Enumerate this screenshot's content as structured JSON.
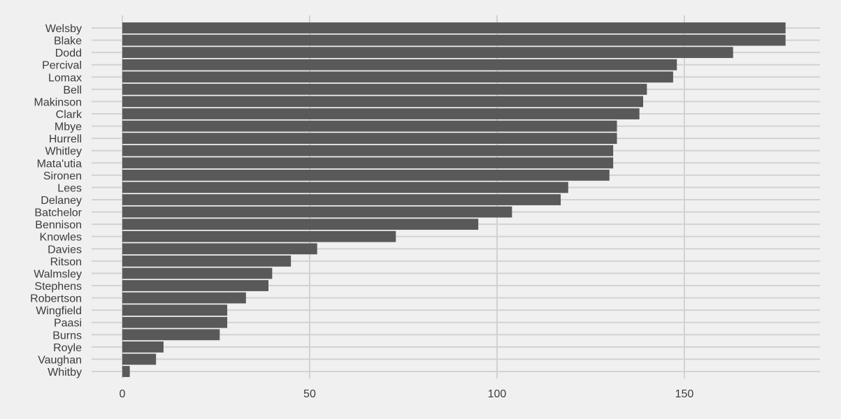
{
  "chart_data": {
    "type": "bar",
    "orientation": "horizontal",
    "title": "",
    "xlabel": "",
    "ylabel": "",
    "categories": [
      "Welsby",
      "Blake",
      "Dodd",
      "Percival",
      "Lomax",
      "Bell",
      "Makinson",
      "Clark",
      "Mbye",
      "Hurrell",
      "Whitley",
      "Mata'utia",
      "Sironen",
      "Lees",
      "Delaney",
      "Batchelor",
      "Bennison",
      "Knowles",
      "Davies",
      "Ritson",
      "Walmsley",
      "Stephens",
      "Robertson",
      "Wingfield",
      "Paasi",
      "Burns",
      "Royle",
      "Vaughan",
      "Whitby"
    ],
    "values": [
      177,
      177,
      163,
      148,
      147,
      140,
      139,
      138,
      132,
      132,
      131,
      131,
      130,
      119,
      117,
      104,
      95,
      73,
      52,
      45,
      40,
      39,
      33,
      28,
      28,
      26,
      11,
      9,
      2
    ],
    "xlim": [
      -8.2,
      186.2
    ],
    "xticks": [
      0,
      50,
      100,
      150
    ],
    "xtick_labels": [
      "0",
      "50",
      "100",
      "150"
    ],
    "grid": true,
    "legend": "none",
    "colors": {
      "background": "#f0f0f0",
      "bar": "#595959",
      "grid": "#d2d2d2",
      "text": "#3c3c3c"
    }
  }
}
